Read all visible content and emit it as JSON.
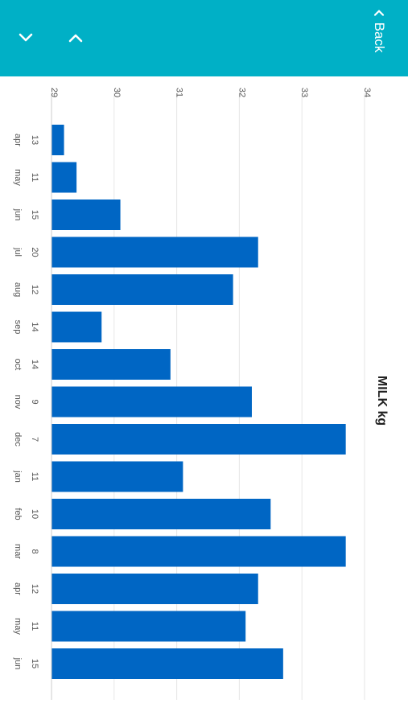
{
  "header": {
    "back_label": "Back",
    "down_icon": "chevron-down-icon",
    "up_icon": "chevron-up-icon",
    "bg_color": "#00b0c6"
  },
  "chart_data": {
    "type": "bar",
    "orientation": "rotated-90",
    "title": "MILK kg",
    "categories": [
      {
        "day": "13",
        "month": "apr"
      },
      {
        "day": "11",
        "month": "may"
      },
      {
        "day": "15",
        "month": "jun"
      },
      {
        "day": "20",
        "month": "jul"
      },
      {
        "day": "12",
        "month": "aug"
      },
      {
        "day": "14",
        "month": "sep"
      },
      {
        "day": "14",
        "month": "oct"
      },
      {
        "day": "9",
        "month": "nov"
      },
      {
        "day": "7",
        "month": "dec"
      },
      {
        "day": "11",
        "month": "jan"
      },
      {
        "day": "10",
        "month": "feb"
      },
      {
        "day": "8",
        "month": "mar"
      },
      {
        "day": "12",
        "month": "apr"
      },
      {
        "day": "11",
        "month": "may"
      },
      {
        "day": "15",
        "month": "jun"
      }
    ],
    "values": [
      29.2,
      29.4,
      30.1,
      32.3,
      31.9,
      29.8,
      30.9,
      32.2,
      33.7,
      31.1,
      32.5,
      33.7,
      32.3,
      32.1,
      32.7
    ],
    "ylim": [
      29,
      34
    ],
    "yticks": [
      29,
      30,
      31,
      32,
      33,
      34
    ],
    "bar_color": "#0066c4",
    "grid": true
  }
}
